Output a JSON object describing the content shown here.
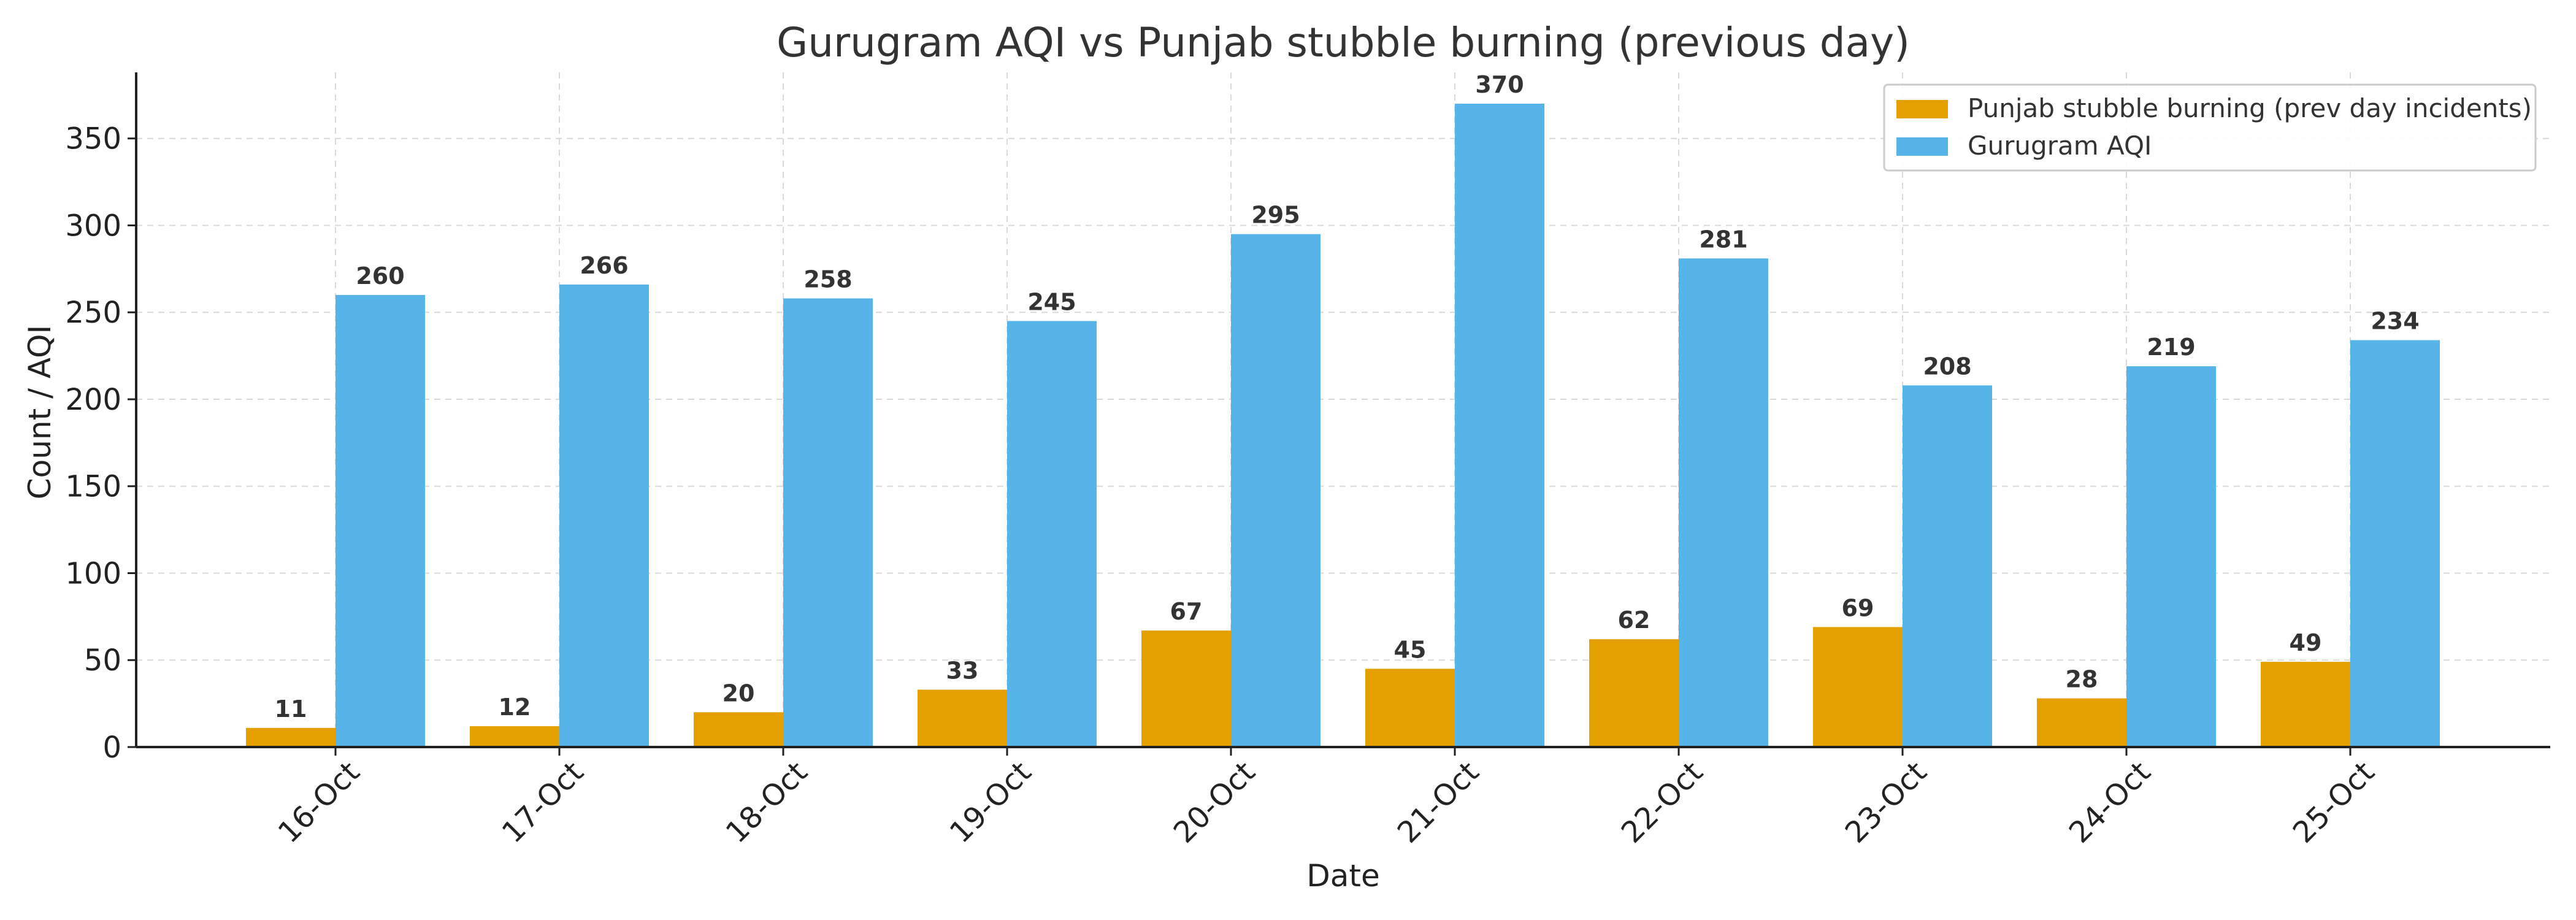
{
  "chart_data": {
    "type": "bar",
    "title": "Gurugram AQI vs Punjab stubble burning (previous day)",
    "xlabel": "Date",
    "ylabel": "Count / AQI",
    "categories": [
      "16-Oct",
      "17-Oct",
      "18-Oct",
      "19-Oct",
      "20-Oct",
      "21-Oct",
      "22-Oct",
      "23-Oct",
      "24-Oct",
      "25-Oct"
    ],
    "series": [
      {
        "name": "Punjab stubble burning (prev day incidents)",
        "color": "#E69F00",
        "values": [
          11,
          12,
          20,
          33,
          67,
          45,
          62,
          69,
          28,
          49
        ]
      },
      {
        "name": "Gurugram AQI",
        "color": "#56B4E9",
        "values": [
          260,
          266,
          258,
          245,
          295,
          370,
          281,
          208,
          219,
          234
        ]
      }
    ],
    "ylim": [
      0,
      388
    ],
    "yticks": [
      0,
      50,
      100,
      150,
      200,
      250,
      300,
      350
    ],
    "grid": true,
    "legend_position": "top-right"
  }
}
